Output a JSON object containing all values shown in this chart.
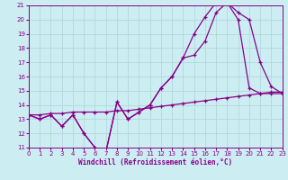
{
  "xlabel": "Windchill (Refroidissement éolien,°C)",
  "xlim": [
    0,
    23
  ],
  "ylim": [
    11,
    21
  ],
  "xticks": [
    0,
    1,
    2,
    3,
    4,
    5,
    6,
    7,
    8,
    9,
    10,
    11,
    12,
    13,
    14,
    15,
    16,
    17,
    18,
    19,
    20,
    21,
    22,
    23
  ],
  "yticks": [
    11,
    12,
    13,
    14,
    15,
    16,
    17,
    18,
    19,
    20,
    21
  ],
  "bg_color": "#cceef2",
  "grid_color": "#b0d8dc",
  "line_color": "#880088",
  "curves": [
    [
      13.3,
      13.0,
      13.3,
      12.5,
      13.3,
      12.0,
      11.0,
      10.7,
      14.2,
      13.0,
      13.5,
      14.0,
      15.2,
      16.0,
      17.3,
      19.0,
      20.2,
      21.2,
      21.2,
      20.0,
      15.2,
      14.8,
      14.8,
      14.8
    ],
    [
      13.3,
      13.0,
      13.3,
      12.5,
      13.3,
      12.0,
      11.0,
      10.7,
      14.2,
      13.0,
      13.5,
      14.0,
      15.2,
      16.0,
      17.3,
      17.5,
      18.5,
      20.5,
      21.2,
      20.5,
      20.0,
      17.0,
      15.3,
      14.8
    ],
    [
      13.3,
      13.3,
      13.4,
      13.4,
      13.5,
      13.5,
      13.5,
      13.5,
      13.6,
      13.6,
      13.7,
      13.8,
      13.9,
      14.0,
      14.1,
      14.2,
      14.3,
      14.4,
      14.5,
      14.6,
      14.7,
      14.8,
      14.9,
      14.9
    ]
  ]
}
